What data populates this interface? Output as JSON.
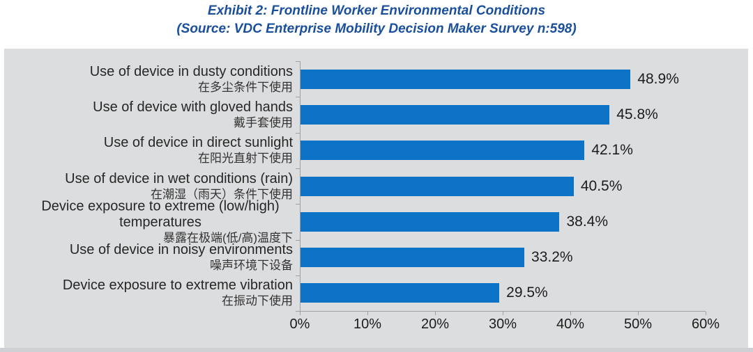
{
  "title": {
    "line1": "Exhibit 2: Frontline Worker Environmental Conditions",
    "line2": "(Source: VDC Enterprise Mobility Decision Maker Survey n:598)"
  },
  "chart_data": {
    "type": "bar",
    "orientation": "horizontal",
    "title": "Exhibit 2: Frontline Worker Environmental Conditions",
    "subtitle": "(Source: VDC Enterprise Mobility Decision Maker Survey n:598)",
    "categories": [
      "Use of device in dusty conditions",
      "Use of device with gloved hands",
      "Use of device in direct sunlight",
      "Use of device in wet conditions (rain)",
      "Device exposure to extreme (low/high) temperatures",
      "Use of device in noisy environments",
      "Device exposure to extreme vibration"
    ],
    "categories_zh": [
      "在多尘条件下使用",
      "戴手套使用",
      "在阳光直射下使用",
      "在潮湿（雨天）条件下使用",
      "暴露在极端(低/高)温度下",
      "噪声环境下设备",
      "在振动下使用"
    ],
    "values": [
      48.9,
      45.8,
      42.1,
      40.5,
      38.4,
      33.2,
      29.5
    ],
    "value_labels": [
      "48.9%",
      "45.8%",
      "42.1%",
      "40.5%",
      "38.4%",
      "33.2%",
      "29.5%"
    ],
    "x_ticks": [
      "0%",
      "10%",
      "20%",
      "30%",
      "40%",
      "50%",
      "60%"
    ],
    "xlim": [
      0,
      60
    ],
    "xlabel": "",
    "ylabel": "",
    "grid": false,
    "legend": "none",
    "bar_color": "#0d73c6",
    "plot_bg": "#dcdddf",
    "bottom_strip_color": "#cfd0d3",
    "axis_color": "#9fa0a2",
    "title_color": "#1a4f9b",
    "text_color": "#262626"
  }
}
